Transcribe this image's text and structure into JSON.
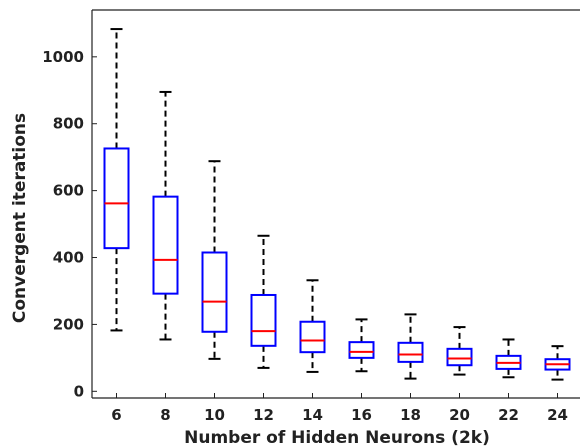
{
  "chart_data": {
    "type": "box",
    "xlabel": "Number of Hidden Neurons (2k)",
    "ylabel": "Convergent iterations",
    "categories": [
      "6",
      "8",
      "10",
      "12",
      "14",
      "16",
      "18",
      "20",
      "22",
      "24"
    ],
    "yticks": [
      "0",
      "200",
      "400",
      "600",
      "800",
      "1000"
    ],
    "ylim": [
      -20,
      1140
    ],
    "grid": false,
    "boxes": [
      {
        "x": 6,
        "whisker_low": 182,
        "q1": 428,
        "median": 562,
        "q3": 726,
        "whisker_high": 1083
      },
      {
        "x": 8,
        "whisker_low": 155,
        "q1": 292,
        "median": 393,
        "q3": 582,
        "whisker_high": 895
      },
      {
        "x": 10,
        "whisker_low": 97,
        "q1": 178,
        "median": 268,
        "q3": 415,
        "whisker_high": 688
      },
      {
        "x": 12,
        "whisker_low": 70,
        "q1": 136,
        "median": 180,
        "q3": 288,
        "whisker_high": 465
      },
      {
        "x": 14,
        "whisker_low": 58,
        "q1": 117,
        "median": 152,
        "q3": 208,
        "whisker_high": 332
      },
      {
        "x": 16,
        "whisker_low": 60,
        "q1": 100,
        "median": 118,
        "q3": 147,
        "whisker_high": 215
      },
      {
        "x": 18,
        "whisker_low": 38,
        "q1": 88,
        "median": 110,
        "q3": 145,
        "whisker_high": 230
      },
      {
        "x": 20,
        "whisker_low": 50,
        "q1": 78,
        "median": 98,
        "q3": 127,
        "whisker_high": 192
      },
      {
        "x": 22,
        "whisker_low": 42,
        "q1": 67,
        "median": 85,
        "q3": 106,
        "whisker_high": 155
      },
      {
        "x": 24,
        "whisker_low": 35,
        "q1": 65,
        "median": 81,
        "q3": 96,
        "whisker_high": 135
      }
    ],
    "colors": {
      "box": "#0000ff",
      "median": "#ff0000",
      "whisker": "#000000"
    }
  }
}
